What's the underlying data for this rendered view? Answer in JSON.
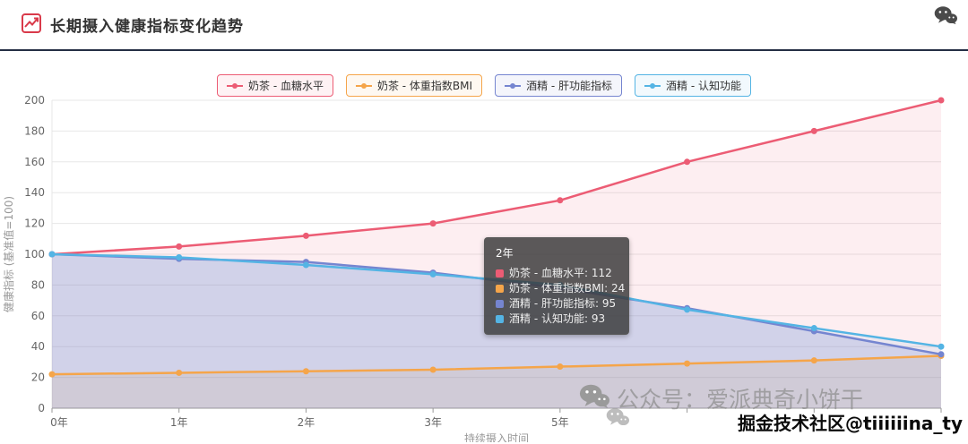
{
  "header": {
    "title": "长期摄入健康指标变化趋势"
  },
  "icons": {
    "title_icon": "chart-line-icon",
    "corner_icon": "wechat-icon",
    "watermark_icon": "wechat-icon"
  },
  "colors": {
    "blood_sugar": "#ec5c74",
    "bmi": "#f5a54a",
    "liver": "#7585d0",
    "cognitive": "#54b4e4",
    "header_underline": "#242e44",
    "title_icon_red": "#d93a4a"
  },
  "chart_data": {
    "type": "line",
    "categories": [
      "0年",
      "1年",
      "2年",
      "3年",
      "5年",
      "",
      "",
      ""
    ],
    "series": [
      {
        "name": "奶茶 - 血糖水平",
        "color": "#ec5c74",
        "fill": "rgba(236,92,116,0.10)",
        "values": [
          100,
          105,
          112,
          120,
          135,
          160,
          180,
          200
        ]
      },
      {
        "name": "奶茶 - 体重指数BMI",
        "color": "#f5a54a",
        "fill": "rgba(245,165,74,0.15)",
        "values": [
          22,
          23,
          24,
          25,
          27,
          29,
          31,
          34
        ]
      },
      {
        "name": "酒精 - 肝功能指标",
        "color": "#7585d0",
        "fill": "rgba(117,133,208,0.22)",
        "values": [
          100,
          97,
          95,
          88,
          78,
          65,
          50,
          35
        ]
      },
      {
        "name": "酒精 - 认知功能",
        "color": "#54b4e4",
        "fill": "rgba(84,180,228,0.10)",
        "values": [
          100,
          98,
          93,
          87,
          80,
          64,
          52,
          40
        ]
      }
    ],
    "xlabel": "持续摄入时间",
    "ylabel": "健康指标 (基准值=100)",
    "ylim": [
      0,
      200
    ],
    "ytick_step": 20,
    "grid": true,
    "legend_position": "top"
  },
  "tooltip": {
    "title": "2年",
    "rows": [
      {
        "label": "奶茶 - 血糖水平",
        "value": "112",
        "color": "#ec5c74"
      },
      {
        "label": "奶茶 - 体重指数BMI",
        "value": "24",
        "color": "#f5a54a"
      },
      {
        "label": "酒精 - 肝功能指标",
        "value": "95",
        "color": "#7585d0"
      },
      {
        "label": "酒精 - 认知功能",
        "value": "93",
        "color": "#54b4e4"
      }
    ]
  },
  "watermarks": {
    "gray_text": "公众号：爱派典奇小饼干",
    "black_text": "掘金技术社区@tiiiiiina_ty"
  }
}
